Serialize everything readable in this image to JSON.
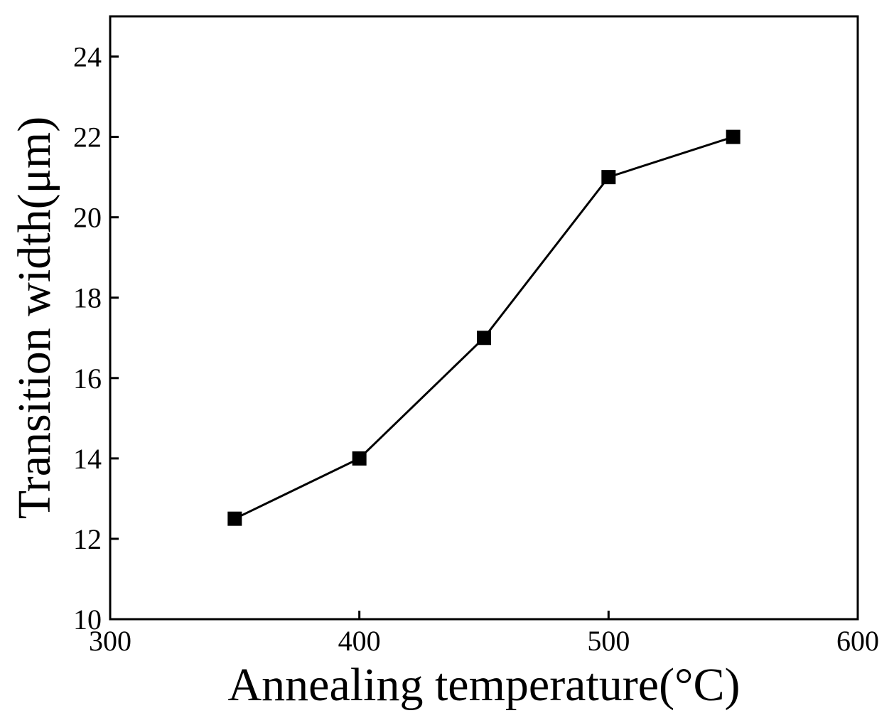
{
  "chart_data": {
    "type": "line",
    "title": "",
    "xlabel": "Annealing temperature(°C)",
    "ylabel": "Transition width(μm)",
    "xlim": [
      300,
      600
    ],
    "ylim": [
      10,
      25
    ],
    "xticks": [
      300,
      400,
      500,
      600
    ],
    "yticks": [
      10,
      12,
      14,
      16,
      18,
      20,
      22,
      24
    ],
    "grid": false,
    "marker": "square",
    "series": [
      {
        "name": "Transition width",
        "x": [
          350,
          400,
          450,
          500,
          550
        ],
        "y": [
          12.5,
          14,
          17,
          21,
          22
        ],
        "color": "#000000"
      }
    ]
  }
}
